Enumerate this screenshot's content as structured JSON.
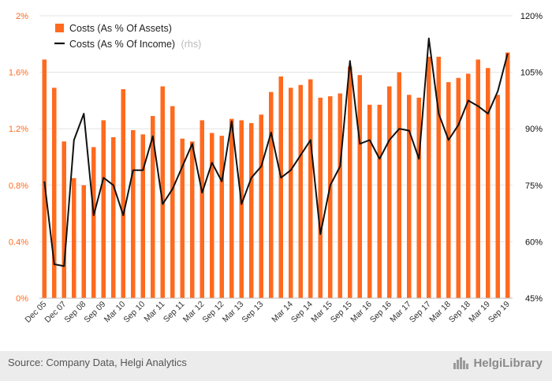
{
  "footer": {
    "source": "Source: Company Data, Helgi Analytics",
    "brand": "HelgiLibrary"
  },
  "colors": {
    "bar": "#ff6a1f",
    "line": "#111111",
    "left_axis_text": "#ff6a1f",
    "right_axis_text": "#111111"
  },
  "chart_data": {
    "type": "bar",
    "title": "",
    "xlabel": "",
    "ylabel": "",
    "legend_position": "top-left",
    "grid": true,
    "left_axis": {
      "ticks": [
        "0%",
        "0.4%",
        "0.8%",
        "1.2%",
        "1.6%",
        "2%"
      ],
      "ylim": [
        0,
        2
      ]
    },
    "right_axis": {
      "ticks": [
        "45%",
        "60%",
        "75%",
        "90%",
        "105%",
        "120%"
      ],
      "ylim": [
        45,
        120
      ]
    },
    "x_tick_labels": [
      "Dec 05",
      "Dec 07",
      "Sep 08",
      "Sep 09",
      "Mar 10",
      "Sep 10",
      "Mar 11",
      "Sep 11",
      "Mar 12",
      "Sep 12",
      "Mar 13",
      "Sep 13",
      "Mar 14",
      "Sep 14",
      "Mar 15",
      "Sep 15",
      "Mar 16",
      "Sep 16",
      "Mar 17",
      "Sep 17",
      "Mar 18",
      "Sep 18",
      "Mar 19",
      "Sep 19"
    ],
    "series": [
      {
        "name": "Costs (As % Of Assets)",
        "axis": "left",
        "type": "bar",
        "values": [
          1.69,
          1.49,
          1.11,
          0.85,
          0.8,
          1.07,
          1.26,
          1.14,
          1.48,
          1.19,
          1.16,
          1.29,
          1.5,
          1.36,
          1.13,
          1.11,
          1.26,
          1.17,
          1.15,
          1.27,
          1.26,
          1.24,
          1.3,
          1.46,
          1.57,
          1.49,
          1.51,
          1.55,
          1.42,
          1.43,
          1.45,
          1.64,
          1.58,
          1.37,
          1.37,
          1.5,
          1.6,
          1.44,
          1.42,
          1.71,
          1.71,
          1.53,
          1.56,
          1.59,
          1.69,
          1.63,
          1.44,
          1.74
        ]
      },
      {
        "name": "Costs (As % Of Income)",
        "name_suffix": "(rhs)",
        "axis": "right",
        "type": "line",
        "values": [
          76,
          54,
          53.5,
          87,
          94,
          67,
          77,
          75,
          67,
          79,
          79,
          88,
          70,
          74,
          80,
          86,
          73,
          81,
          76,
          92,
          70,
          77,
          80,
          89,
          77,
          79,
          83,
          87,
          62,
          75,
          80,
          108,
          86,
          87,
          82,
          87,
          90,
          89.5,
          82,
          114,
          94,
          87,
          91,
          97.5,
          96,
          94,
          100,
          110
        ]
      }
    ]
  }
}
